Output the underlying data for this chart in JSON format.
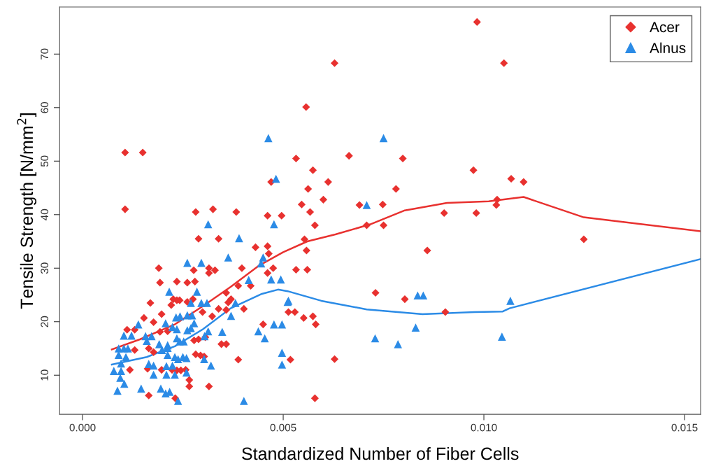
{
  "chart_data": {
    "type": "scatter",
    "xlabel": "Standardized Number of Fiber Cells",
    "ylabel": "Tensile Strength [N/mm$^{2}$]",
    "xlim": [
      -0.00057,
      0.0154
    ],
    "ylim": [
      2.7,
      78.8
    ],
    "xticks": [
      {
        "value": 0,
        "label": "0.000"
      },
      {
        "value": 0.005,
        "label": "0.005"
      },
      {
        "value": 0.01,
        "label": "0.010"
      },
      {
        "value": 0.015,
        "label": "0.015"
      }
    ],
    "yticks": [
      10,
      20,
      30,
      40,
      50,
      60,
      70
    ],
    "grid": false,
    "legend": "top right",
    "series": [
      {
        "name": "Acer",
        "color": "#e8312f",
        "marker": "diamond",
        "x": [
          0.00983,
          0.0105,
          0.00628,
          0.00557,
          0.00106,
          0.0015,
          0.00532,
          0.00664,
          0.00798,
          0.00574,
          0.00612,
          0.00562,
          0.00781,
          0.00546,
          0.006,
          0.00567,
          0.0069,
          0.00748,
          0.00496,
          0.00579,
          0.00708,
          0.0075,
          0.00553,
          0.00558,
          0.00859,
          0.00901,
          0.00981,
          0.00974,
          0.00532,
          0.0056,
          0.0073,
          0.00803,
          0.00904,
          0.00513,
          0.00529,
          0.00551,
          0.00574,
          0.00581,
          0.00518,
          0.00628,
          0.00579,
          0.01068,
          0.01099,
          0.01033,
          0.01031,
          0.01249,
          0.0047,
          0.00106,
          0.00282,
          0.00325,
          0.00383,
          0.00461,
          0.00289,
          0.00339,
          0.00431,
          0.00461,
          0.00464,
          0.0019,
          0.00277,
          0.00315,
          0.00315,
          0.0033,
          0.00397,
          0.00461,
          0.00475,
          0.00193,
          0.00235,
          0.00261,
          0.0028,
          0.00388,
          0.00419,
          0.00226,
          0.00235,
          0.00242,
          0.00261,
          0.00275,
          0.00169,
          0.00221,
          0.00358,
          0.0037,
          0.00363,
          0.00339,
          0.00358,
          0.00402,
          0.00299,
          0.00197,
          0.00153,
          0.00177,
          0.00323,
          0.00111,
          0.0013,
          0.00193,
          0.00212,
          0.0045,
          0.00278,
          0.00289,
          0.00306,
          0.00346,
          0.00358,
          0.0013,
          0.00165,
          0.00177,
          0.00282,
          0.00294,
          0.00303,
          0.00388,
          0.00118,
          0.00162,
          0.00197,
          0.00223,
          0.00235,
          0.00245,
          0.00257,
          0.00266,
          0.00266,
          0.00315,
          0.00165,
          0.00231
        ],
        "values": [
          76.0,
          68.3,
          68.3,
          60.1,
          51.6,
          51.6,
          50.5,
          51.0,
          50.5,
          48.3,
          46.1,
          44.8,
          44.8,
          41.9,
          42.8,
          40.5,
          41.8,
          41.9,
          39.8,
          38.0,
          38.0,
          38.0,
          35.4,
          33.3,
          33.3,
          40.3,
          40.3,
          48.3,
          29.7,
          29.7,
          25.4,
          24.2,
          21.8,
          21.8,
          21.8,
          20.7,
          21.0,
          19.5,
          12.9,
          13.0,
          5.7,
          46.7,
          46.1,
          42.8,
          41.8,
          35.4,
          46.1,
          41.0,
          40.5,
          41.0,
          40.5,
          39.8,
          35.5,
          35.5,
          33.9,
          34.1,
          32.7,
          30.0,
          29.6,
          30.0,
          29.1,
          29.6,
          30.0,
          29.1,
          30.0,
          27.3,
          27.5,
          27.3,
          27.5,
          26.7,
          26.7,
          24.2,
          24.0,
          24.0,
          23.7,
          24.2,
          23.5,
          23.1,
          25.4,
          24.2,
          23.6,
          22.4,
          22.2,
          22.4,
          21.8,
          21.4,
          20.7,
          19.9,
          21.0,
          18.5,
          18.5,
          18.1,
          18.2,
          19.5,
          16.5,
          16.7,
          17.1,
          15.8,
          15.8,
          14.7,
          15.0,
          14.3,
          13.9,
          13.7,
          13.5,
          12.9,
          11.0,
          11.2,
          11.0,
          11.0,
          10.9,
          10.9,
          11.0,
          9.1,
          7.9,
          7.9,
          6.2,
          5.7
        ]
      },
      {
        "name": "Alnus",
        "color": "#2b8be6",
        "marker": "triangle",
        "x": [
          0.00313,
          0.00477,
          0.0039,
          0.00363,
          0.00261,
          0.00296,
          0.0045,
          0.00445,
          0.00414,
          0.0047,
          0.00494,
          0.00216,
          0.00285,
          0.0027,
          0.00296,
          0.0031,
          0.00381,
          0.0037,
          0.00513,
          0.00233,
          0.00243,
          0.00261,
          0.00273,
          0.00139,
          0.00207,
          0.00224,
          0.00235,
          0.00278,
          0.0027,
          0.00261,
          0.00313,
          0.00348,
          0.00304,
          0.00438,
          0.00454,
          0.00477,
          0.00497,
          0.00103,
          0.00122,
          0.00157,
          0.00172,
          0.00191,
          0.00212,
          0.00235,
          0.00242,
          0.00252,
          0.0016,
          0.0009,
          0.00103,
          0.00113,
          0.0009,
          0.00108,
          0.00198,
          0.00212,
          0.00212,
          0.0023,
          0.00238,
          0.0025,
          0.00259,
          0.00303,
          0.0032,
          0.00096,
          0.00165,
          0.00177,
          0.00209,
          0.00224,
          0.00078,
          0.00096,
          0.00177,
          0.00209,
          0.0023,
          0.00259,
          0.00094,
          0.00104,
          0.00087,
          0.00146,
          0.00195,
          0.00207,
          0.00217,
          0.00238,
          0.00402,
          0.00497,
          0.00497,
          0.0075,
          0.00708,
          0.00511,
          0.00835,
          0.00849,
          0.0083,
          0.00729,
          0.00786,
          0.01066,
          0.01045,
          0.00463,
          0.00482
        ],
        "values": [
          38.2,
          38.2,
          35.6,
          32.0,
          31.0,
          31.0,
          32.0,
          30.9,
          27.8,
          27.9,
          27.9,
          25.6,
          25.6,
          23.5,
          23.5,
          23.5,
          23.5,
          21.1,
          23.9,
          20.8,
          21.0,
          21.2,
          21.2,
          19.5,
          19.7,
          19.0,
          18.6,
          19.7,
          18.8,
          18.4,
          18.2,
          18.1,
          17.3,
          18.2,
          16.9,
          19.5,
          19.5,
          17.4,
          17.4,
          17.3,
          17.3,
          15.8,
          15.6,
          16.9,
          16.3,
          16.3,
          16.4,
          15.0,
          15.0,
          15.0,
          13.8,
          13.4,
          14.7,
          15.1,
          13.8,
          13.4,
          13.0,
          13.4,
          13.2,
          13.0,
          11.8,
          12.2,
          12.1,
          11.8,
          11.7,
          11.8,
          10.8,
          10.8,
          10.1,
          10.1,
          10.1,
          10.5,
          9.5,
          8.4,
          7.1,
          7.5,
          7.5,
          6.6,
          6.9,
          5.2,
          5.2,
          14.2,
          12.0,
          54.3,
          41.8,
          23.7,
          24.9,
          24.9,
          18.9,
          16.9,
          15.8,
          23.9,
          17.2,
          54.3,
          46.7
        ]
      },
      {
        "type": "line",
        "color": "#e8312f",
        "line_style": "solid",
        "x": [
          0.00073,
          0.00143,
          0.0023,
          0.003,
          0.00369,
          0.00438,
          0.005,
          0.0056,
          0.0063,
          0.00717,
          0.00803,
          0.00908,
          0.01012,
          0.01099,
          0.01249,
          0.0154
        ],
        "values": [
          14.8,
          16.7,
          19.5,
          22.9,
          26.5,
          30.4,
          33.0,
          35.0,
          36.3,
          38.2,
          40.8,
          42.2,
          42.5,
          43.3,
          39.5,
          36.9
        ]
      },
      {
        "type": "line",
        "color": "#2b8be6",
        "line_style": "solid",
        "x": [
          0.00073,
          0.0016,
          0.0023,
          0.003,
          0.00369,
          0.00447,
          0.00487,
          0.00511,
          0.00595,
          0.00708,
          0.00847,
          0.00977,
          0.01047,
          0.01064,
          0.0154
        ],
        "values": [
          12.0,
          13.4,
          15.4,
          18.6,
          22.5,
          25.2,
          26.0,
          25.7,
          23.9,
          22.3,
          21.4,
          21.8,
          21.9,
          22.5,
          31.7
        ]
      }
    ]
  }
}
